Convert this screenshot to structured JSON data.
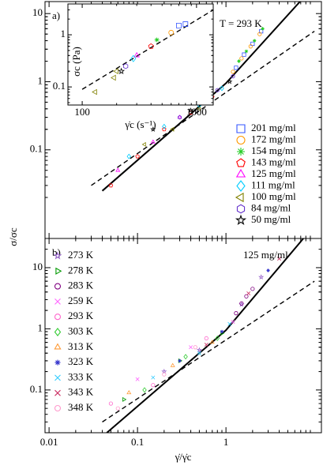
{
  "chart_data": [
    {
      "type": "scatter",
      "log_x": true,
      "log_y": true,
      "annotations": [
        "a)",
        "T = 293 K"
      ],
      "xlim": [
        0.009,
        12
      ],
      "ylim": [
        0.005,
        15
      ],
      "xticks": [
        0.01,
        0.1,
        1
      ],
      "yticks": [
        0.1,
        1,
        10
      ],
      "legend": "right",
      "lines": [
        {
          "x": [
            0.04,
            1,
            7.5
          ],
          "y": [
            0.025,
            0.95,
            17
          ],
          "style": "solid"
        },
        {
          "x": [
            0.03,
            10
          ],
          "y": [
            0.03,
            5.5
          ],
          "style": "dashed"
        }
      ],
      "series": [
        {
          "name": "201 mg/ml",
          "color": "#3355ff",
          "marker": "square",
          "x": [
            1.3,
            1.6,
            2.0,
            2.5
          ],
          "y": [
            1.6,
            2.5,
            3.6,
            5.5
          ]
        },
        {
          "name": "172 mg/ml",
          "color": "#ff9900",
          "marker": "circle",
          "x": [
            1.2,
            1.5,
            1.9,
            2.4
          ],
          "y": [
            1.4,
            2.2,
            3.3,
            5
          ]
        },
        {
          "name": "154 mg/ml",
          "color": "#22cc22",
          "marker": "asterisk",
          "x": [
            1.4,
            1.7,
            2.1,
            2.6
          ],
          "y": [
            2,
            2.8,
            4,
            6
          ]
        },
        {
          "name": "143 mg/ml",
          "color": "#ff0000",
          "marker": "pentagon",
          "x": [
            0.05,
            0.1,
            0.2,
            0.4,
            0.7
          ],
          "y": [
            0.03,
            0.08,
            0.2,
            0.35,
            0.6
          ]
        },
        {
          "name": "125 mg/ml",
          "color": "#ff00ff",
          "marker": "triangle",
          "x": [
            0.06,
            0.15,
            0.3,
            0.6
          ],
          "y": [
            0.05,
            0.13,
            0.3,
            0.55
          ]
        },
        {
          "name": "111 mg/ml",
          "color": "#00ccff",
          "marker": "diamond",
          "x": [
            0.08,
            0.2,
            0.5,
            0.9
          ],
          "y": [
            0.08,
            0.22,
            0.45,
            0.8
          ]
        },
        {
          "name": "100 mg/ml",
          "color": "#808000",
          "marker": "ltriangle",
          "x": [
            0.12,
            0.25,
            0.5
          ],
          "y": [
            0.12,
            0.2,
            0.4
          ]
        },
        {
          "name": "84 mg/ml",
          "color": "#6633cc",
          "marker": "hexagon",
          "x": [
            0.3,
            0.8,
            1.2
          ],
          "y": [
            0.3,
            0.75,
            1.2
          ]
        },
        {
          "name": "50 mg/ml",
          "color": "#000000",
          "marker": "star",
          "x": [
            0.15,
            0.4,
            1.1
          ],
          "y": [
            0.2,
            0.38,
            1.0
          ]
        }
      ]
    },
    {
      "type": "scatter",
      "log_x": true,
      "log_y": true,
      "xlabel": "γ̇c (s⁻¹)",
      "ylabel": "σc (Pa)",
      "xlim": [
        75,
        1400
      ],
      "ylim": [
        0.045,
        3.9
      ],
      "xticks": [
        100,
        1000
      ],
      "yticks": [
        0.1,
        1
      ],
      "lines": [
        {
          "x": [
            100,
            1400
          ],
          "y": [
            0.09,
            3
          ],
          "style": "dashed"
        }
      ],
      "series": [
        {
          "color": "#3355ff",
          "marker": "square",
          "x": [
            700,
            800
          ],
          "y": [
            1.5,
            1.6
          ]
        },
        {
          "color": "#ff9900",
          "marker": "circle",
          "x": [
            600
          ],
          "y": [
            1.1
          ]
        },
        {
          "color": "#22cc22",
          "marker": "asterisk",
          "x": [
            450
          ],
          "y": [
            0.8
          ]
        },
        {
          "color": "#ff0000",
          "marker": "pentagon",
          "x": [
            400
          ],
          "y": [
            0.6
          ]
        },
        {
          "color": "#ff00ff",
          "marker": "triangle",
          "x": [
            300
          ],
          "y": [
            0.4
          ]
        },
        {
          "color": "#00ccff",
          "marker": "diamond",
          "x": [
            280
          ],
          "y": [
            0.35
          ]
        },
        {
          "color": "#808000",
          "marker": "ltriangle",
          "x": [
            200,
            190,
            130
          ],
          "y": [
            0.2,
            0.15,
            0.08
          ]
        },
        {
          "color": "#6633cc",
          "marker": "hexagon",
          "x": [
            240
          ],
          "y": [
            0.25
          ]
        },
        {
          "color": "#000000",
          "marker": "star",
          "x": [
            220
          ],
          "y": [
            0.2
          ]
        }
      ]
    },
    {
      "type": "scatter",
      "log_x": true,
      "log_y": true,
      "annotations": [
        "b)",
        "125 mg/ml"
      ],
      "xlabel": "γ̇/γ̇c",
      "ylabel": "σ/σc",
      "xlim": [
        0.009,
        12
      ],
      "ylim": [
        0.02,
        30
      ],
      "xticks": [
        0.01,
        0.1,
        1
      ],
      "yticks": [
        0.1,
        1,
        10
      ],
      "legend": "left",
      "lines": [
        {
          "x": [
            0.045,
            1,
            7.5
          ],
          "y": [
            0.02,
            0.95,
            30
          ],
          "style": "solid"
        },
        {
          "x": [
            0.04,
            10
          ],
          "y": [
            0.03,
            6
          ],
          "style": "dashed"
        }
      ],
      "series": [
        {
          "name": "273 K",
          "color": "#9966cc",
          "marker": "star",
          "x": [
            0.2,
            0.5,
            1.5,
            2.5
          ],
          "y": [
            0.2,
            0.45,
            2.5,
            7
          ]
        },
        {
          "name": "278 K",
          "color": "#009900",
          "marker": "rtriangle",
          "x": [
            0.07,
            0.3,
            0.9
          ],
          "y": [
            0.07,
            0.3,
            0.85
          ]
        },
        {
          "name": "283 K",
          "color": "#800080",
          "marker": "circle",
          "x": [
            1.3,
            1.5,
            1.7,
            2.0
          ],
          "y": [
            1.8,
            2.6,
            3.4,
            4.5
          ]
        },
        {
          "name": "259 K",
          "color": "#ff66ff",
          "marker": "cross",
          "x": [
            0.1,
            0.4,
            1.2
          ],
          "y": [
            0.15,
            0.5,
            1.3
          ]
        },
        {
          "name": "293 K",
          "color": "#ff66cc",
          "marker": "circle",
          "x": [
            0.05,
            0.15,
            0.6
          ],
          "y": [
            0.06,
            0.12,
            0.7
          ]
        },
        {
          "name": "303 K",
          "color": "#33cc33",
          "marker": "diamond",
          "x": [
            0.12,
            0.35,
            0.8
          ],
          "y": [
            0.1,
            0.35,
            0.7
          ]
        },
        {
          "name": "313 K",
          "color": "#ff9933",
          "marker": "triangle",
          "x": [
            0.08,
            0.25,
            0.7
          ],
          "y": [
            0.09,
            0.25,
            0.6
          ]
        },
        {
          "name": "323 K",
          "color": "#3333cc",
          "marker": "asterisk",
          "x": [
            0.3,
            0.9,
            3.0
          ],
          "y": [
            0.3,
            0.9,
            9
          ]
        },
        {
          "name": "333 K",
          "color": "#33ccff",
          "marker": "cross",
          "x": [
            0.15,
            0.5,
            1.1
          ],
          "y": [
            0.16,
            0.4,
            1.2
          ]
        },
        {
          "name": "343 K",
          "color": "#cc3366",
          "marker": "cross",
          "x": [
            0.6,
            1.8,
            4.0
          ],
          "y": [
            0.55,
            3.8,
            14
          ]
        },
        {
          "name": "348 K",
          "color": "#ff99cc",
          "marker": "circle",
          "x": [
            0.06,
            0.2,
            0.45
          ],
          "y": [
            0.05,
            0.18,
            0.5
          ]
        }
      ]
    }
  ]
}
